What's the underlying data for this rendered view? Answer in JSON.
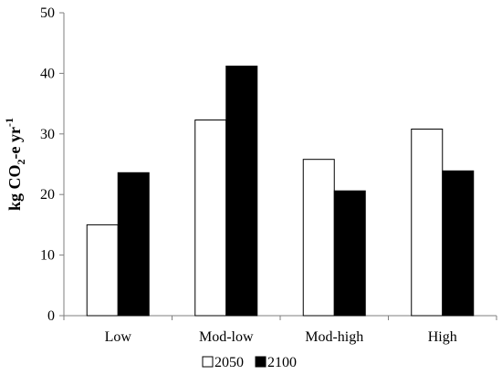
{
  "chart_data": {
    "type": "bar",
    "ylabel": {
      "main": "kg CO",
      "sub": "2",
      "mid": "-e yr",
      "sup": "-1"
    },
    "ylim": [
      0,
      50
    ],
    "yticks": [
      "0",
      "10",
      "20",
      "30",
      "40",
      "50"
    ],
    "categories": [
      "Low",
      "Mod-low",
      "Mod-high",
      "High"
    ],
    "series": [
      {
        "name": "2050",
        "values": [
          15.0,
          32.3,
          25.8,
          30.8
        ],
        "color": "#ffffff"
      },
      {
        "name": "2100",
        "values": [
          23.6,
          41.2,
          20.6,
          23.9
        ],
        "color": "#000000"
      }
    ],
    "legend_position": "bottom",
    "grid": false
  }
}
